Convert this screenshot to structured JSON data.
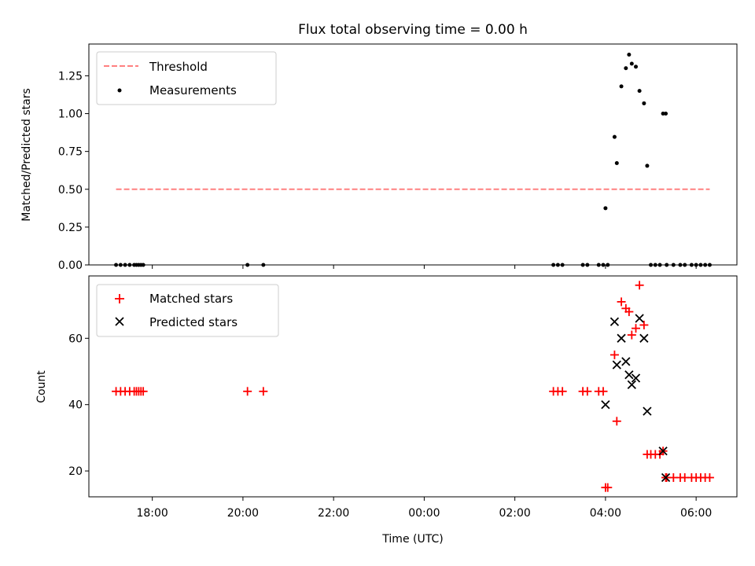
{
  "chart_data": [
    {
      "type": "scatter",
      "title": "Flux total observing time = 0.00 h",
      "ylabel": "Matched/Predicted stars",
      "xlabel": "",
      "xlim_hours": [
        -7.4,
        6.9
      ],
      "ylim": [
        0.0,
        1.46
      ],
      "yticks": [
        0.0,
        0.25,
        0.5,
        0.75,
        1.0,
        1.25
      ],
      "ytick_labels": [
        "0.00",
        "0.25",
        "0.50",
        "0.75",
        "1.00",
        "1.25"
      ],
      "legend": {
        "position": "upper-left",
        "entries": [
          "Threshold",
          "Measurements"
        ]
      },
      "threshold": {
        "name": "Threshold",
        "value": 0.5,
        "x_range": [
          -6.8,
          6.3
        ],
        "color": "#ff8080",
        "style": "dashed"
      },
      "series": [
        {
          "name": "Measurements",
          "marker": "dot",
          "color": "#000000",
          "x": [
            -6.8,
            -6.7,
            -6.6,
            -6.5,
            -6.4,
            -6.35,
            -6.3,
            -6.25,
            -6.2,
            -3.9,
            -3.55,
            2.85,
            2.95,
            3.05,
            3.5,
            3.6,
            3.85,
            3.95,
            4.0,
            4.05,
            4.2,
            4.25,
            4.35,
            4.45,
            4.52,
            4.58,
            4.67,
            4.75,
            4.85,
            4.92,
            5.0,
            5.1,
            5.2,
            5.27,
            5.33,
            5.35,
            5.5,
            5.65,
            5.75,
            5.9,
            6.0,
            6.1,
            6.2,
            6.3
          ],
          "y": [
            0,
            0,
            0,
            0,
            0,
            0,
            0,
            0,
            0,
            0,
            0,
            0,
            0,
            0,
            0,
            0,
            0,
            0,
            0.375,
            0,
            0.846,
            0.673,
            1.18,
            1.3,
            1.39,
            1.33,
            1.31,
            1.15,
            1.068,
            0.655,
            0,
            0,
            0,
            1.0,
            1.0,
            0,
            0,
            0,
            0,
            0,
            0,
            0,
            0,
            0
          ]
        }
      ]
    },
    {
      "type": "scatter",
      "title": "",
      "ylabel": "Count",
      "xlabel": "Time (UTC)",
      "xlim_hours": [
        -7.4,
        6.9
      ],
      "ylim": [
        12.2,
        78.8
      ],
      "yticks": [
        20,
        40,
        60
      ],
      "ytick_labels": [
        "20",
        "40",
        "60"
      ],
      "xticks_hours": [
        -6,
        -4,
        -2,
        0,
        2,
        4,
        6
      ],
      "xtick_labels": [
        "18:00",
        "20:00",
        "22:00",
        "00:00",
        "02:00",
        "04:00",
        "06:00"
      ],
      "legend": {
        "position": "upper-left",
        "entries": [
          "Matched stars",
          "Predicted stars"
        ]
      },
      "series": [
        {
          "name": "Matched stars",
          "marker": "plus",
          "color": "#ff0000",
          "x": [
            -6.8,
            -6.7,
            -6.6,
            -6.5,
            -6.4,
            -6.35,
            -6.3,
            -6.25,
            -6.2,
            -3.9,
            -3.55,
            2.85,
            2.95,
            3.05,
            3.5,
            3.6,
            3.85,
            3.95,
            4.0,
            4.05,
            4.2,
            4.25,
            4.35,
            4.45,
            4.52,
            4.58,
            4.67,
            4.75,
            4.85,
            4.92,
            5.0,
            5.1,
            5.2,
            5.27,
            5.33,
            5.35,
            5.5,
            5.65,
            5.75,
            5.9,
            6.0,
            6.1,
            6.2,
            6.3
          ],
          "y": [
            44,
            44,
            44,
            44,
            44,
            44,
            44,
            44,
            44,
            44,
            44,
            44,
            44,
            44,
            44,
            44,
            44,
            44,
            15,
            15,
            55,
            35,
            71,
            69,
            68,
            61,
            63,
            76,
            64,
            25,
            25,
            25,
            25,
            26,
            18,
            18,
            18,
            18,
            18,
            18,
            18,
            18,
            18,
            18
          ]
        },
        {
          "name": "Predicted stars",
          "marker": "x",
          "color": "#000000",
          "x": [
            4.0,
            4.2,
            4.25,
            4.35,
            4.45,
            4.52,
            4.58,
            4.67,
            4.75,
            4.85,
            4.92,
            5.27,
            5.33
          ],
          "y": [
            40,
            65,
            52,
            60,
            53,
            49,
            46,
            48,
            66,
            60,
            38,
            26,
            18
          ]
        }
      ]
    }
  ]
}
